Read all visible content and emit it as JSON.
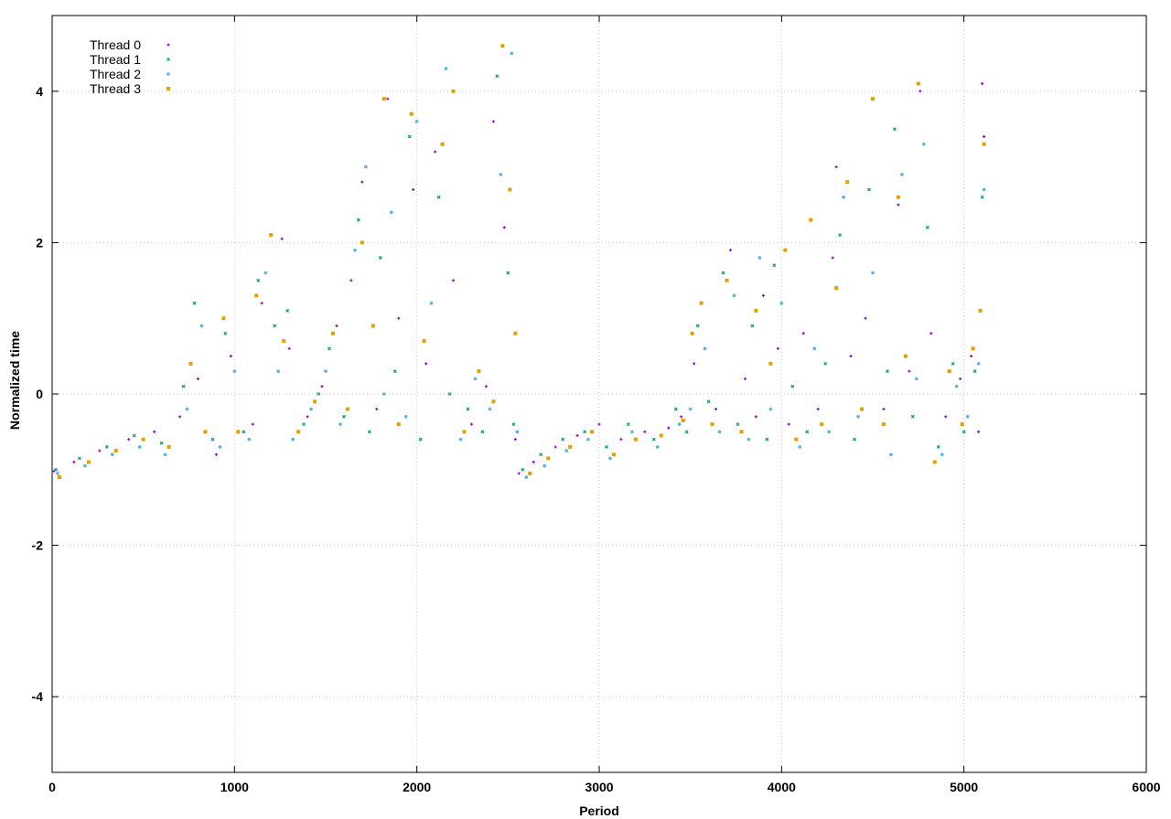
{
  "chart_data": {
    "type": "scatter",
    "title": "",
    "xlabel": "Period",
    "ylabel": "Normalized time",
    "xlim": [
      0,
      6000
    ],
    "ylim": [
      -5,
      5
    ],
    "xticks": [
      0,
      1000,
      2000,
      3000,
      4000,
      5000,
      6000
    ],
    "yticks": [
      -4,
      -2,
      0,
      2,
      4
    ],
    "grid": true,
    "legend_position": "top-left",
    "series": [
      {
        "name": "Thread 0",
        "color": "#9400d3",
        "marker": "plus",
        "points": [
          [
            10,
            -1.02
          ],
          [
            120,
            -0.9
          ],
          [
            260,
            -0.75
          ],
          [
            420,
            -0.6
          ],
          [
            560,
            -0.5
          ],
          [
            700,
            -0.3
          ],
          [
            800,
            0.2
          ],
          [
            900,
            -0.8
          ],
          [
            980,
            0.5
          ],
          [
            1100,
            -0.4
          ],
          [
            1150,
            1.2
          ],
          [
            1260,
            2.05
          ],
          [
            1300,
            0.6
          ],
          [
            1400,
            -0.3
          ],
          [
            1480,
            0.1
          ],
          [
            1560,
            0.9
          ],
          [
            1640,
            1.5
          ],
          [
            1700,
            2.8
          ],
          [
            1780,
            -0.2
          ],
          [
            1840,
            3.9
          ],
          [
            1900,
            1.0
          ],
          [
            1980,
            2.7
          ],
          [
            2050,
            0.4
          ],
          [
            2100,
            3.2
          ],
          [
            2200,
            1.5
          ],
          [
            2300,
            -0.4
          ],
          [
            2380,
            0.1
          ],
          [
            2420,
            3.6
          ],
          [
            2480,
            2.2
          ],
          [
            2540,
            -0.6
          ],
          [
            2560,
            -1.05
          ],
          [
            2640,
            -0.9
          ],
          [
            2760,
            -0.7
          ],
          [
            2880,
            -0.55
          ],
          [
            3000,
            -0.4
          ],
          [
            3120,
            -0.6
          ],
          [
            3250,
            -0.5
          ],
          [
            3380,
            -0.45
          ],
          [
            3450,
            -0.3
          ],
          [
            3520,
            0.4
          ],
          [
            3560,
            1.2
          ],
          [
            3640,
            -0.2
          ],
          [
            3720,
            1.9
          ],
          [
            3800,
            0.2
          ],
          [
            3860,
            -0.3
          ],
          [
            3900,
            1.3
          ],
          [
            3980,
            0.6
          ],
          [
            4040,
            -0.4
          ],
          [
            4120,
            0.8
          ],
          [
            4200,
            -0.2
          ],
          [
            4280,
            1.8
          ],
          [
            4300,
            3.0
          ],
          [
            4380,
            0.5
          ],
          [
            4460,
            1.0
          ],
          [
            4560,
            -0.2
          ],
          [
            4640,
            2.5
          ],
          [
            4700,
            0.3
          ],
          [
            4760,
            4.0
          ],
          [
            4820,
            0.8
          ],
          [
            4900,
            -0.3
          ],
          [
            4980,
            0.2
          ],
          [
            5040,
            0.5
          ],
          [
            5080,
            -0.5
          ],
          [
            5100,
            4.1
          ],
          [
            5110,
            3.4
          ]
        ]
      },
      {
        "name": "Thread 1",
        "color": "#009e73",
        "marker": "cross",
        "points": [
          [
            20,
            -1.0
          ],
          [
            150,
            -0.85
          ],
          [
            300,
            -0.7
          ],
          [
            450,
            -0.55
          ],
          [
            600,
            -0.65
          ],
          [
            720,
            0.1
          ],
          [
            780,
            1.2
          ],
          [
            880,
            -0.6
          ],
          [
            950,
            0.8
          ],
          [
            1050,
            -0.5
          ],
          [
            1130,
            1.5
          ],
          [
            1220,
            0.9
          ],
          [
            1290,
            1.1
          ],
          [
            1380,
            -0.4
          ],
          [
            1460,
            0.0
          ],
          [
            1520,
            0.6
          ],
          [
            1600,
            -0.3
          ],
          [
            1680,
            2.3
          ],
          [
            1740,
            -0.5
          ],
          [
            1800,
            1.8
          ],
          [
            1880,
            0.3
          ],
          [
            1960,
            3.4
          ],
          [
            2020,
            -0.6
          ],
          [
            2120,
            2.6
          ],
          [
            2180,
            0.0
          ],
          [
            2280,
            -0.2
          ],
          [
            2360,
            -0.5
          ],
          [
            2440,
            4.2
          ],
          [
            2500,
            1.6
          ],
          [
            2530,
            -0.4
          ],
          [
            2580,
            -1.0
          ],
          [
            2680,
            -0.8
          ],
          [
            2800,
            -0.6
          ],
          [
            2920,
            -0.5
          ],
          [
            3040,
            -0.7
          ],
          [
            3160,
            -0.4
          ],
          [
            3300,
            -0.6
          ],
          [
            3420,
            -0.2
          ],
          [
            3480,
            -0.5
          ],
          [
            3540,
            0.9
          ],
          [
            3600,
            -0.1
          ],
          [
            3680,
            1.6
          ],
          [
            3760,
            -0.4
          ],
          [
            3840,
            0.9
          ],
          [
            3920,
            -0.6
          ],
          [
            3960,
            1.7
          ],
          [
            4060,
            0.1
          ],
          [
            4140,
            -0.5
          ],
          [
            4240,
            0.4
          ],
          [
            4320,
            2.1
          ],
          [
            4400,
            -0.6
          ],
          [
            4480,
            2.7
          ],
          [
            4580,
            0.3
          ],
          [
            4620,
            3.5
          ],
          [
            4720,
            -0.3
          ],
          [
            4800,
            2.2
          ],
          [
            4860,
            -0.7
          ],
          [
            4940,
            0.4
          ],
          [
            5000,
            -0.5
          ],
          [
            5060,
            0.3
          ],
          [
            5100,
            2.6
          ]
        ]
      },
      {
        "name": "Thread 2",
        "color": "#56b4e9",
        "marker": "star",
        "points": [
          [
            30,
            -1.05
          ],
          [
            180,
            -0.95
          ],
          [
            330,
            -0.8
          ],
          [
            480,
            -0.7
          ],
          [
            620,
            -0.8
          ],
          [
            740,
            -0.2
          ],
          [
            820,
            0.9
          ],
          [
            920,
            -0.7
          ],
          [
            1000,
            0.3
          ],
          [
            1080,
            -0.6
          ],
          [
            1170,
            1.6
          ],
          [
            1240,
            0.3
          ],
          [
            1320,
            -0.6
          ],
          [
            1420,
            -0.2
          ],
          [
            1500,
            0.3
          ],
          [
            1580,
            -0.4
          ],
          [
            1660,
            1.9
          ],
          [
            1720,
            3.0
          ],
          [
            1820,
            0.0
          ],
          [
            1860,
            2.4
          ],
          [
            1940,
            -0.3
          ],
          [
            2000,
            3.6
          ],
          [
            2080,
            1.2
          ],
          [
            2160,
            4.3
          ],
          [
            2240,
            -0.6
          ],
          [
            2320,
            0.2
          ],
          [
            2400,
            -0.2
          ],
          [
            2460,
            2.9
          ],
          [
            2520,
            4.5
          ],
          [
            2550,
            -0.5
          ],
          [
            2600,
            -1.1
          ],
          [
            2700,
            -0.95
          ],
          [
            2820,
            -0.75
          ],
          [
            2940,
            -0.6
          ],
          [
            3060,
            -0.85
          ],
          [
            3180,
            -0.5
          ],
          [
            3320,
            -0.7
          ],
          [
            3440,
            -0.4
          ],
          [
            3500,
            -0.2
          ],
          [
            3580,
            0.6
          ],
          [
            3660,
            -0.5
          ],
          [
            3740,
            1.3
          ],
          [
            3820,
            -0.6
          ],
          [
            3880,
            1.8
          ],
          [
            3940,
            -0.2
          ],
          [
            4000,
            1.2
          ],
          [
            4100,
            -0.7
          ],
          [
            4180,
            0.6
          ],
          [
            4260,
            -0.5
          ],
          [
            4340,
            2.6
          ],
          [
            4420,
            -0.3
          ],
          [
            4500,
            1.6
          ],
          [
            4600,
            -0.8
          ],
          [
            4660,
            2.9
          ],
          [
            4740,
            0.2
          ],
          [
            4780,
            3.3
          ],
          [
            4880,
            -0.8
          ],
          [
            4960,
            0.1
          ],
          [
            5020,
            -0.3
          ],
          [
            5080,
            0.4
          ],
          [
            5110,
            2.7
          ]
        ]
      },
      {
        "name": "Thread 3",
        "color": "#e69f00",
        "marker": "square",
        "points": [
          [
            40,
            -1.1
          ],
          [
            200,
            -0.9
          ],
          [
            350,
            -0.75
          ],
          [
            500,
            -0.6
          ],
          [
            640,
            -0.7
          ],
          [
            760,
            0.4
          ],
          [
            840,
            -0.5
          ],
          [
            940,
            1.0
          ],
          [
            1020,
            -0.5
          ],
          [
            1120,
            1.3
          ],
          [
            1200,
            2.1
          ],
          [
            1270,
            0.7
          ],
          [
            1350,
            -0.5
          ],
          [
            1440,
            -0.1
          ],
          [
            1540,
            0.8
          ],
          [
            1620,
            -0.2
          ],
          [
            1700,
            2.0
          ],
          [
            1760,
            0.9
          ],
          [
            1820,
            3.9
          ],
          [
            1900,
            -0.4
          ],
          [
            1970,
            3.7
          ],
          [
            2040,
            0.7
          ],
          [
            2140,
            3.3
          ],
          [
            2200,
            4.0
          ],
          [
            2260,
            -0.5
          ],
          [
            2340,
            0.3
          ],
          [
            2420,
            -0.1
          ],
          [
            2470,
            4.6
          ],
          [
            2510,
            2.7
          ],
          [
            2540,
            0.8
          ],
          [
            2620,
            -1.05
          ],
          [
            2720,
            -0.85
          ],
          [
            2840,
            -0.7
          ],
          [
            2960,
            -0.5
          ],
          [
            3080,
            -0.8
          ],
          [
            3200,
            -0.6
          ],
          [
            3340,
            -0.55
          ],
          [
            3460,
            -0.35
          ],
          [
            3510,
            0.8
          ],
          [
            3560,
            1.2
          ],
          [
            3620,
            -0.4
          ],
          [
            3700,
            1.5
          ],
          [
            3780,
            -0.5
          ],
          [
            3860,
            1.1
          ],
          [
            3940,
            0.4
          ],
          [
            4020,
            1.9
          ],
          [
            4080,
            -0.6
          ],
          [
            4160,
            2.3
          ],
          [
            4220,
            -0.4
          ],
          [
            4300,
            1.4
          ],
          [
            4360,
            2.8
          ],
          [
            4440,
            -0.2
          ],
          [
            4500,
            3.9
          ],
          [
            4560,
            -0.4
          ],
          [
            4640,
            2.6
          ],
          [
            4680,
            0.5
          ],
          [
            4750,
            4.1
          ],
          [
            4840,
            -0.9
          ],
          [
            4920,
            0.3
          ],
          [
            4990,
            -0.4
          ],
          [
            5050,
            0.6
          ],
          [
            5090,
            1.1
          ],
          [
            5110,
            3.3
          ]
        ]
      }
    ]
  }
}
